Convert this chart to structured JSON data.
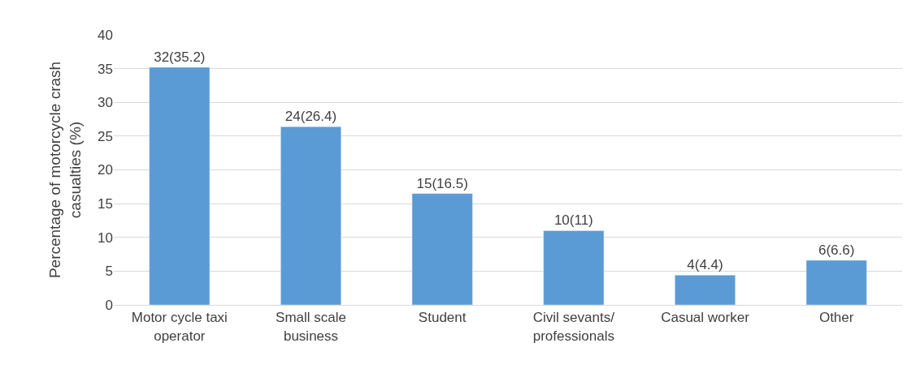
{
  "chart_data": {
    "type": "bar",
    "ylabel": "Percentage of motorcycle crash\ncasualties (%)",
    "categories": [
      "Motor cycle taxi\noperator",
      "Small scale\nbusiness",
      "Student",
      "Civil sevants/\nprofessionals",
      "Casual worker",
      "Other"
    ],
    "values": [
      35.2,
      26.4,
      16.5,
      11,
      4.4,
      6.6
    ],
    "value_labels": [
      "32(35.2)",
      "24(26.4)",
      "15(16.5)",
      "10(11)",
      "4(4.4)",
      "6(6.6)"
    ],
    "color": "#5b9bd5",
    "ylim": [
      0,
      40
    ],
    "yticks": [
      0,
      5,
      10,
      15,
      20,
      25,
      30,
      35,
      40
    ],
    "grid": "y",
    "legend": false
  }
}
